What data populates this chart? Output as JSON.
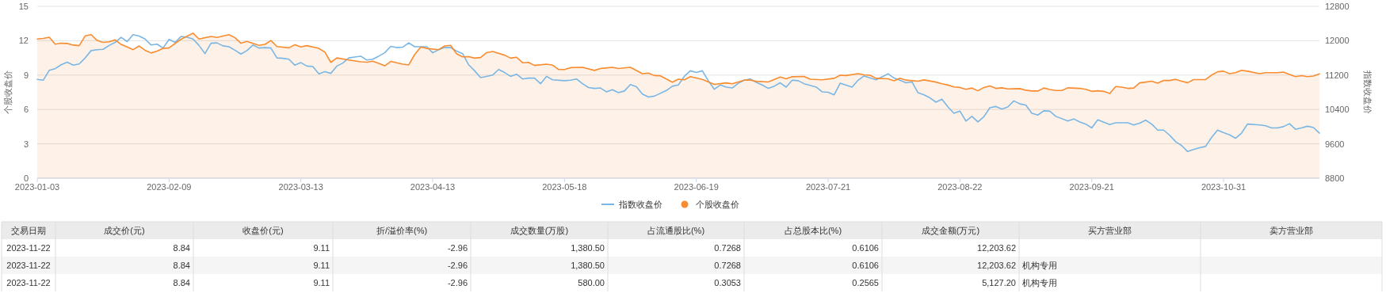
{
  "chart_data": [
    {
      "type": "line",
      "ylabel": "个股收盘价",
      "y2label": "指数收盘价",
      "categories": [
        "2023-01-03",
        null,
        null,
        null,
        null,
        null,
        null,
        null,
        null,
        null,
        null,
        null,
        null,
        null,
        null,
        null,
        null,
        null,
        null,
        null,
        null,
        null,
        "2023-02-09",
        null,
        null,
        null,
        null,
        null,
        null,
        null,
        null,
        null,
        null,
        null,
        null,
        null,
        null,
        null,
        null,
        null,
        null,
        null,
        null,
        null,
        "2023-03-13",
        null,
        null,
        null,
        null,
        null,
        null,
        null,
        null,
        null,
        null,
        null,
        null,
        null,
        null,
        null,
        null,
        null,
        null,
        null,
        null,
        null,
        "2023-04-13",
        null,
        null,
        null,
        null,
        null,
        null,
        null,
        null,
        null,
        null,
        null,
        null,
        null,
        null,
        null,
        null,
        null,
        null,
        null,
        null,
        null,
        "2023-05-18",
        null,
        null,
        null,
        null,
        null,
        null,
        null,
        null,
        null,
        null,
        null,
        null,
        null,
        null,
        null,
        null,
        null,
        null,
        null,
        null,
        null,
        "2023-06-19",
        null,
        null,
        null,
        null,
        null,
        null,
        null,
        null,
        null,
        null,
        null,
        null,
        null,
        null,
        null,
        null,
        null,
        null,
        null,
        null,
        null,
        "2023-07-21",
        null,
        null,
        null,
        null,
        null,
        null,
        null,
        null,
        null,
        null,
        null,
        null,
        null,
        null,
        null,
        null,
        null,
        null,
        null,
        null,
        null,
        "2023-08-22",
        null,
        null,
        null,
        null,
        null,
        null,
        null,
        null,
        null,
        null,
        null,
        null,
        null,
        null,
        null,
        null,
        null,
        null,
        null,
        null,
        null,
        "2023-09-21",
        null,
        null,
        null,
        null,
        null,
        null,
        null,
        null,
        null,
        null,
        null,
        null,
        null,
        null,
        null,
        null,
        null,
        null,
        null,
        null,
        null,
        "2023-10-31",
        null,
        null,
        null,
        null,
        null,
        null,
        null,
        null,
        null,
        null,
        null,
        null,
        null,
        null,
        null,
        null
      ],
      "ylim": [
        0,
        15
      ],
      "yticks": [
        0,
        3,
        6,
        9,
        12,
        15
      ],
      "y2lim": [
        8800,
        12800
      ],
      "y2ticks": [
        8800,
        9600,
        10400,
        11200,
        12000,
        12800
      ],
      "grid": "y",
      "legend": "bottom",
      "marker": "none",
      "line_style": "solid",
      "series": [
        {
          "name": "指数收盘价",
          "type": "line",
          "axis": "y2",
          "color": "#7ab6e4",
          "values": [
            11100,
            11080,
            11310,
            11350,
            11440,
            11500,
            11430,
            11460,
            11600,
            11770,
            11790,
            11800,
            11890,
            11960,
            12080,
            11980,
            12140,
            12110,
            12040,
            11900,
            11920,
            11830,
            12030,
            11960,
            12100,
            12080,
            12040,
            11890,
            11700,
            11940,
            11950,
            11880,
            11860,
            11780,
            11690,
            11770,
            11900,
            11830,
            11840,
            11830,
            11600,
            11590,
            11570,
            11430,
            11490,
            11410,
            11400,
            11230,
            11280,
            11240,
            11410,
            11480,
            11600,
            11620,
            11640,
            11550,
            11570,
            11640,
            11720,
            11870,
            11840,
            11850,
            11950,
            11860,
            11860,
            11860,
            11720,
            11790,
            11840,
            11840,
            11760,
            11700,
            11440,
            11300,
            11140,
            11170,
            11200,
            11330,
            11260,
            11170,
            11220,
            11110,
            11130,
            11130,
            11000,
            11170,
            11090,
            null,
            11070,
            11080,
            11110,
            11000,
            10910,
            10890,
            10900,
            10810,
            10860,
            10790,
            10830,
            10980,
            10930,
            10760,
            10690,
            10710,
            null,
            10840,
            10940,
            10970,
            11170,
            11300,
            11260,
            11300,
            11070,
            10870,
            10970,
            10920,
            10900,
            11010,
            11080,
            11110,
            11030,
            10970,
            10890,
            10940,
            11020,
            10920,
            11080,
            11070,
            11000,
            null,
            10920,
            10810,
            10800,
            10740,
            11010,
            null,
            10920,
            11080,
            11180,
            null,
            11090,
            null,
            11230,
            11130,
            11080,
            11020,
            11040,
            10790,
            10740,
            10670,
            10570,
            10640,
            10460,
            10310,
            10360,
            10130,
            10240,
            10110,
            10230,
            10440,
            10470,
            10410,
            10460,
            10600,
            10530,
            10500,
            10310,
            10270,
            10370,
            10360,
            10240,
            null,
            10130,
            10180,
            10110,
            10060,
            9970,
            10160,
            null,
            10050,
            10090,
            null,
            10090,
            10040,
            10080,
            10150,
            10060,
            9920,
            9920,
            9800,
            9650,
            9560,
            9420,
            9470,
            9510,
            9540,
            9750,
            9920,
            9860,
            9810,
            9730,
            9850,
            10060,
            null,
            10040,
            10020,
            9970,
            9970,
            10000,
            10070,
            9940,
            9970,
            10010,
            9980,
            9850
          ]
        },
        {
          "name": "个股收盘价",
          "type": "area",
          "color": "#f98c2f",
          "values": [
            12.15,
            12.2,
            12.3,
            11.7,
            11.78,
            11.76,
            11.62,
            11.57,
            12.42,
            12.53,
            12.02,
            11.86,
            11.91,
            12.07,
            11.68,
            11.46,
            11.22,
            11.54,
            11.17,
            10.93,
            11.09,
            11.33,
            11.38,
            null,
            12.13,
            null,
            12.66,
            12.15,
            null,
            12.37,
            12.29,
            null,
            12.53,
            12.26,
            11.78,
            11.94,
            null,
            11.6,
            11.68,
            12.02,
            11.49,
            null,
            11.38,
            11.65,
            11.46,
            11.57,
            null,
            11.33,
            11.01,
            10.11,
            10.5,
            null,
            10.32,
            null,
            10.16,
            10.13,
            10.21,
            10.03,
            9.81,
            10.19,
            null,
            9.95,
            9.89,
            10.8,
            11.44,
            11.33,
            null,
            11.22,
            11.54,
            11.6,
            10.85,
            10.59,
            10.61,
            10.48,
            10.53,
            10.96,
            11.06,
            null,
            10.74,
            10.48,
            10.56,
            10.08,
            10.11,
            9.84,
            null,
            9.95,
            9.87,
            9.49,
            9.49,
            9.65,
            null,
            9.68,
            null,
            9.41,
            9.57,
            null,
            9.68,
            9.57,
            null,
            9.68,
            null,
            9.12,
            9.18,
            8.96,
            8.94,
            null,
            8.38,
            8.64,
            8.59,
            8.86,
            null,
            8.62,
            null,
            8.19,
            null,
            8.32,
            8.24,
            null,
            8.56,
            8.56,
            8.46,
            null,
            8.4,
            null,
            8.83,
            8.67,
            8.86,
            null,
            8.88,
            8.64,
            null,
            8.59,
            null,
            8.72,
            8.99,
            8.96,
            null,
            9.12,
            9.02,
            8.99,
            8.72,
            null,
            8.67,
            8.51,
            8.72,
            8.56,
            8.51,
            8.47,
            8.58,
            null,
            8.39,
            8.24,
            8.13,
            7.97,
            7.92,
            7.76,
            7.87,
            7.63,
            7.92,
            8.05,
            7.84,
            7.89,
            7.79,
            null,
            7.82,
            7.68,
            7.61,
            7.61,
            7.87,
            7.74,
            7.66,
            7.66,
            7.89,
            null,
            7.84,
            7.76,
            7.58,
            7.63,
            7.58,
            7.39,
            8.0,
            7.95,
            7.84,
            7.87,
            8.32,
            8.39,
            8.47,
            8.29,
            8.53,
            8.53,
            8.63,
            8.47,
            8.34,
            8.61,
            null,
            8.61,
            9.0,
            9.29,
            9.34,
            9.13,
            9.21,
            9.42,
            9.34,
            null,
            9.13,
            9.21,
            null,
            9.21,
            9.26,
            9.05,
            8.87,
            8.95,
            8.87,
            8.92,
            9.11
          ]
        }
      ]
    },
    {
      "type": "other",
      "categories": [
        "交易日期",
        "成交价(元)",
        "收盘价(元)",
        "折/溢价率(%)",
        "成交数量(万股)",
        "占流通股比(%)",
        "占总股本比(%)",
        "成交金额(万元)",
        "买方营业部",
        "卖方营业部"
      ],
      "cell_labels": [
        [
          "2023-11-22",
          "8.84",
          "9.11",
          "-2.96",
          "1,380.50",
          "0.7268",
          "0.6106",
          "12,203.62",
          null,
          null
        ],
        [
          "2023-11-22",
          "8.84",
          "9.11",
          "-2.96",
          "1,380.50",
          "0.7268",
          "0.6106",
          "12,203.62",
          "机构专用",
          null
        ],
        [
          "2023-11-22",
          "8.84",
          "9.11",
          "-2.96",
          "580.00",
          "0.3053",
          "0.2565",
          "5,127.20",
          "机构专用",
          null
        ]
      ]
    }
  ]
}
